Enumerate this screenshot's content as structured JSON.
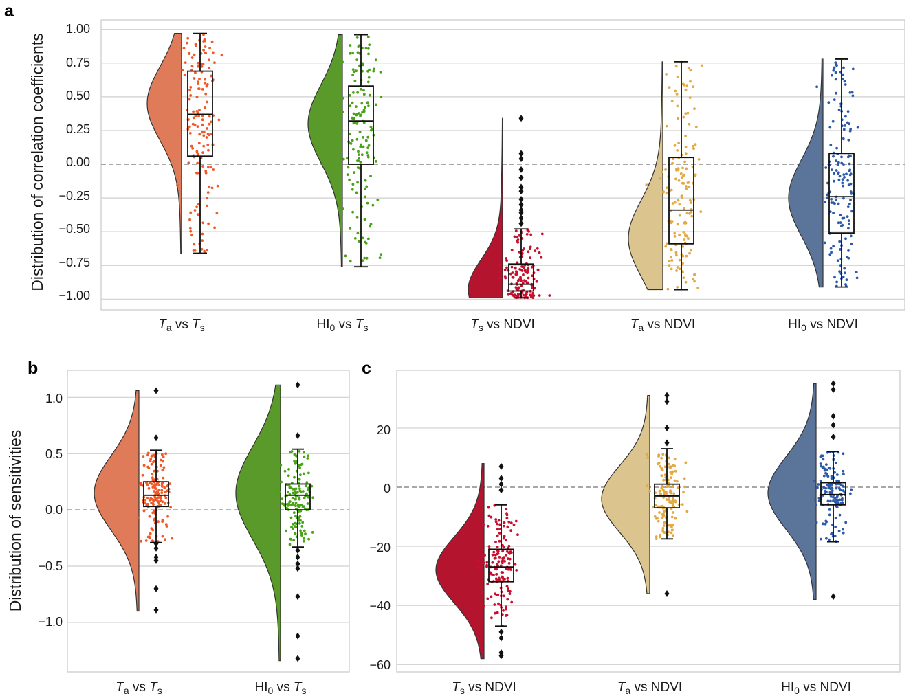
{
  "panels": {
    "a": {
      "letter": "a",
      "ylabel": "Distribution of correlation coefficients",
      "yticks": [
        "1.00",
        "0.75",
        "0.50",
        "0.25",
        "0.00",
        "−0.25",
        "−0.50",
        "−0.75",
        "−1.00"
      ]
    },
    "b": {
      "letter": "b",
      "ylabel": "Distribution of sensitivities",
      "yticks": [
        "1.0",
        "0.5",
        "0.0",
        "−0.5",
        "−1.0"
      ]
    },
    "c": {
      "letter": "c",
      "ylabel": "",
      "yticks": [
        "20",
        "0",
        "−20",
        "−40",
        "−60"
      ]
    }
  },
  "xlabels": {
    "ta_ts": {
      "a": "T",
      "a_sub": "a",
      "mid": " vs ",
      "b": "T",
      "b_sub": "s"
    },
    "hi0_ts": {
      "a": "HI",
      "a_sub": "0",
      "mid": " vs ",
      "b": "T",
      "b_sub": "s"
    },
    "ts_ndvi": {
      "a": "T",
      "a_sub": "s",
      "mid": " vs NDVI"
    },
    "ta_ndvi": {
      "a": "T",
      "a_sub": "a",
      "mid": " vs NDVI"
    },
    "hi0_ndvi": {
      "a": "HI",
      "a_sub": "0",
      "mid": " vs NDVI"
    }
  },
  "colors": {
    "ta_ts": "#e07b59",
    "ta_ts_pts": "#f05a28",
    "hi0_ts": "#5a9a2a",
    "hi0_ts_pts": "#4aa317",
    "ts_ndvi": "#b5142e",
    "ts_ndvi_pts": "#c8102e",
    "ta_ndvi": "#dcc48e",
    "ta_ndvi_pts": "#e3a945",
    "hi0_ndvi": "#5b7499",
    "hi0_ndvi_pts": "#2b5aa8",
    "grid": "#cfcfcf",
    "zero_line": "#8a8a8a"
  },
  "chart_data": [
    {
      "panel": "a",
      "type": "raincloud",
      "ylabel": "Distribution of correlation coefficients",
      "ylim": [
        -1.08,
        1.07
      ],
      "categories": [
        "Ta vs Ts",
        "HI0 vs Ts",
        "Ts vs NDVI",
        "Ta vs NDVI",
        "HI0 vs NDVI"
      ],
      "grid": true,
      "series": [
        {
          "key": "ta_ts",
          "box": {
            "whislo": -0.66,
            "q1": 0.06,
            "med": 0.37,
            "q3": 0.69,
            "whishi": 0.97
          },
          "range": [
            -0.66,
            0.97
          ],
          "density_peak": 0.45,
          "outliers": []
        },
        {
          "key": "hi0_ts",
          "box": {
            "whislo": -0.76,
            "q1": 0.0,
            "med": 0.32,
            "q3": 0.58,
            "whishi": 0.96
          },
          "range": [
            -0.76,
            0.96
          ],
          "density_peak": 0.3,
          "outliers": []
        },
        {
          "key": "ts_ndvi",
          "box": {
            "whislo": -0.99,
            "q1": -0.94,
            "med": -0.89,
            "q3": -0.74,
            "whishi": -0.48
          },
          "range": [
            -0.99,
            0.34
          ],
          "density_peak": -0.93,
          "outliers": [
            0.34,
            0.08,
            0.04,
            -0.04,
            -0.1,
            -0.17,
            -0.2,
            -0.26,
            -0.3,
            -0.34,
            -0.36,
            -0.4,
            -0.44
          ]
        },
        {
          "key": "ta_ndvi",
          "box": {
            "whislo": -0.93,
            "q1": -0.59,
            "med": -0.34,
            "q3": 0.05,
            "whishi": 0.76
          },
          "range": [
            -0.93,
            0.76
          ],
          "density_peak": -0.55,
          "outliers": []
        },
        {
          "key": "hi0_ndvi",
          "box": {
            "whislo": -0.91,
            "q1": -0.51,
            "med": -0.24,
            "q3": 0.08,
            "whishi": 0.78
          },
          "range": [
            -0.91,
            0.78
          ],
          "density_peak": -0.25,
          "outliers": []
        }
      ]
    },
    {
      "panel": "b",
      "type": "raincloud",
      "ylabel": "Distribution of sensitivities",
      "ylim": [
        -1.44,
        1.24
      ],
      "categories": [
        "Ta vs Ts",
        "HI0 vs Ts"
      ],
      "grid": true,
      "series": [
        {
          "key": "ta_ts",
          "box": {
            "whislo": -0.29,
            "q1": 0.03,
            "med": 0.13,
            "q3": 0.25,
            "whishi": 0.53
          },
          "range": [
            -0.9,
            1.06
          ],
          "density_peak": 0.15,
          "outliers": [
            1.06,
            0.64,
            -0.3,
            -0.34,
            -0.42,
            -0.45,
            -0.7,
            -0.89
          ]
        },
        {
          "key": "hi0_ts",
          "box": {
            "whislo": -0.33,
            "q1": 0.0,
            "med": 0.13,
            "q3": 0.23,
            "whishi": 0.54
          },
          "range": [
            -1.34,
            1.11
          ],
          "density_peak": 0.15,
          "outliers": [
            1.11,
            0.66,
            -0.36,
            -0.42,
            -0.48,
            -0.52,
            -0.77,
            -1.12,
            -1.32
          ]
        }
      ]
    },
    {
      "panel": "c",
      "type": "raincloud",
      "ylabel": "",
      "ylim": [
        -62.5,
        39.5
      ],
      "categories": [
        "Ts vs NDVI",
        "Ta vs NDVI",
        "HI0 vs NDVI"
      ],
      "grid": true,
      "series": [
        {
          "key": "ts_ndvi",
          "box": {
            "whislo": -47,
            "q1": -32,
            "med": -27,
            "q3": -21,
            "whishi": -6
          },
          "range": [
            -58,
            8
          ],
          "density_peak": -28,
          "outliers": [
            7,
            3,
            1,
            -1,
            -49,
            -51,
            -56,
            -57
          ]
        },
        {
          "key": "ta_ndvi",
          "box": {
            "whislo": -17.5,
            "q1": -7,
            "med": -3,
            "q3": 1,
            "whishi": 13
          },
          "range": [
            -36,
            31
          ],
          "density_peak": -4,
          "outliers": [
            31,
            29,
            20,
            15,
            -36
          ]
        },
        {
          "key": "hi0_ndvi",
          "box": {
            "whislo": -18.5,
            "q1": -6,
            "med": -2.5,
            "q3": 1.5,
            "whishi": 12
          },
          "range": [
            -38,
            35
          ],
          "density_peak": -2,
          "outliers": [
            35,
            33,
            24,
            21,
            17,
            -37
          ]
        }
      ]
    }
  ]
}
